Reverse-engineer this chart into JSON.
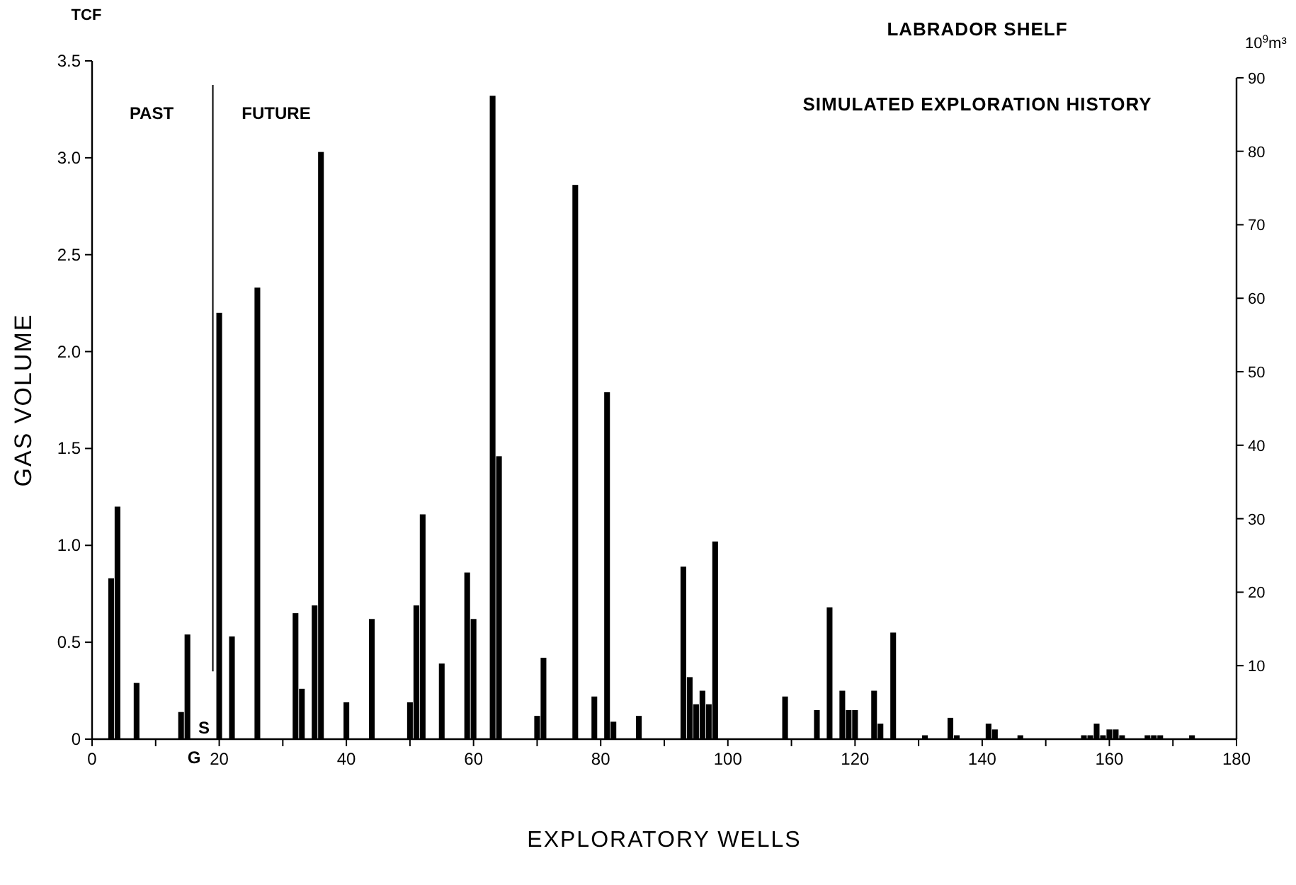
{
  "chart_data": {
    "type": "bar",
    "title": "LABRADOR SHELF",
    "subtitle": "SIMULATED EXPLORATION HISTORY",
    "xlabel": "EXPLORATORY WELLS",
    "ylabel": "GAS VOLUME",
    "y2label": "10$^{9}$m³",
    "x": [
      3,
      4,
      7,
      14,
      15,
      20,
      22,
      26,
      32,
      33,
      35,
      36,
      40,
      44,
      50,
      51,
      52,
      55,
      59,
      60,
      63,
      64,
      70,
      71,
      76,
      79,
      81,
      82,
      86,
      93,
      94,
      95,
      96,
      97,
      98,
      109,
      114,
      116,
      118,
      119,
      120,
      123,
      124,
      126,
      131,
      135,
      136,
      141,
      142,
      146,
      156,
      157,
      158,
      159,
      160,
      161,
      162,
      166,
      167,
      168,
      173
    ],
    "values": [
      0.83,
      1.2,
      0.29,
      0.14,
      0.54,
      2.2,
      0.53,
      2.33,
      0.65,
      0.26,
      0.69,
      3.03,
      0.19,
      0.62,
      0.19,
      0.69,
      1.16,
      0.39,
      0.86,
      0.62,
      3.32,
      1.46,
      0.12,
      0.42,
      2.86,
      0.22,
      1.79,
      0.09,
      0.12,
      0.89,
      0.32,
      0.18,
      0.25,
      0.18,
      1.02,
      0.22,
      0.15,
      0.68,
      0.25,
      0.15,
      0.15,
      0.25,
      0.08,
      0.55,
      0.02,
      0.11,
      0.02,
      0.08,
      0.05,
      0.02,
      0.02,
      0.02,
      0.08,
      0.02,
      0.05,
      0.05,
      0.02,
      0.02,
      0.02,
      0.02,
      0.02
    ],
    "color": "#000000",
    "xlim": [
      0,
      180
    ],
    "xticks": [
      0,
      {
        "value": 10,
        "label": null
      },
      20,
      {
        "value": 30,
        "label": null
      },
      40,
      {
        "value": 50,
        "label": null
      },
      60,
      {
        "value": 70,
        "label": null
      },
      80,
      {
        "value": 90,
        "label": null
      },
      100,
      {
        "value": 110,
        "label": null
      },
      120,
      {
        "value": 130,
        "label": null
      },
      140,
      {
        "value": 150,
        "label": null
      },
      160,
      {
        "value": 170,
        "label": null
      },
      180
    ],
    "ylim": [
      0,
      3.5
    ],
    "yticks": [
      0,
      0.5,
      {
        "value": 1,
        "label": "1.0"
      },
      1.5,
      {
        "value": 2,
        "label": "2.0"
      },
      2.5,
      {
        "value": 3,
        "label": "3.0"
      },
      3.5
    ],
    "y2lim": [
      0,
      92.3
    ],
    "y2ticks": [
      10,
      20,
      30,
      40,
      50,
      60,
      70,
      80,
      90
    ],
    "ref_lines": [
      {
        "axis": "x",
        "value": 19
      }
    ],
    "annotations": [
      "TCF",
      "PAST",
      "FUTURE",
      "S",
      "G"
    ],
    "grid": false
  }
}
